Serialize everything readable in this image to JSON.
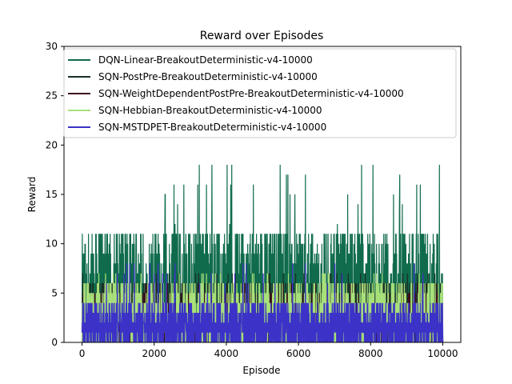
{
  "chart_data": {
    "type": "line",
    "title": "Reward over Episodes",
    "xlabel": "Episode",
    "ylabel": "Reward",
    "xlim": [
      -500,
      10500
    ],
    "ylim": [
      0,
      30
    ],
    "xticks": [
      0,
      2000,
      4000,
      6000,
      8000,
      10000
    ],
    "yticks": [
      0,
      5,
      10,
      15,
      20,
      25,
      30
    ],
    "legend_position": "top",
    "grid": false,
    "series": [
      {
        "name": "DQN-Linear-BreakoutDeterministic-v4-10000",
        "color": "#0f6b4c",
        "episodes": [
          0,
          10000
        ],
        "reward_range": [
          0,
          18
        ],
        "typical_peak": 11,
        "spikes": [
          [
            3250,
            18
          ],
          [
            3450,
            16
          ],
          [
            3600,
            18
          ],
          [
            7750,
            18
          ],
          [
            4750,
            16
          ],
          [
            2300,
            15
          ],
          [
            5900,
            15
          ],
          [
            8800,
            14
          ]
        ]
      },
      {
        "name": "SQN-PostPre-BreakoutDeterministic-v4-10000",
        "color": "#1a2e24",
        "episodes": [
          0,
          10000
        ],
        "reward_range": [
          0,
          7
        ],
        "typical_peak": 6
      },
      {
        "name": "SQN-WeightDependentPostPre-BreakoutDeterministic-v4-10000",
        "color": "#3d0f1b",
        "episodes": [
          0,
          10000
        ],
        "reward_range": [
          0,
          6
        ],
        "typical_peak": 5
      },
      {
        "name": "SQN-Hebbian-BreakoutDeterministic-v4-10000",
        "color": "#a8e07a",
        "episodes": [
          0,
          10000
        ],
        "reward_range": [
          0,
          7
        ],
        "typical_peak": 6
      },
      {
        "name": "SQN-MSTDPET-BreakoutDeterministic-v4-10000",
        "color": "#3c32c8",
        "episodes": [
          0,
          10000
        ],
        "reward_range": [
          0,
          8
        ],
        "typical_peak": 4
      }
    ]
  }
}
